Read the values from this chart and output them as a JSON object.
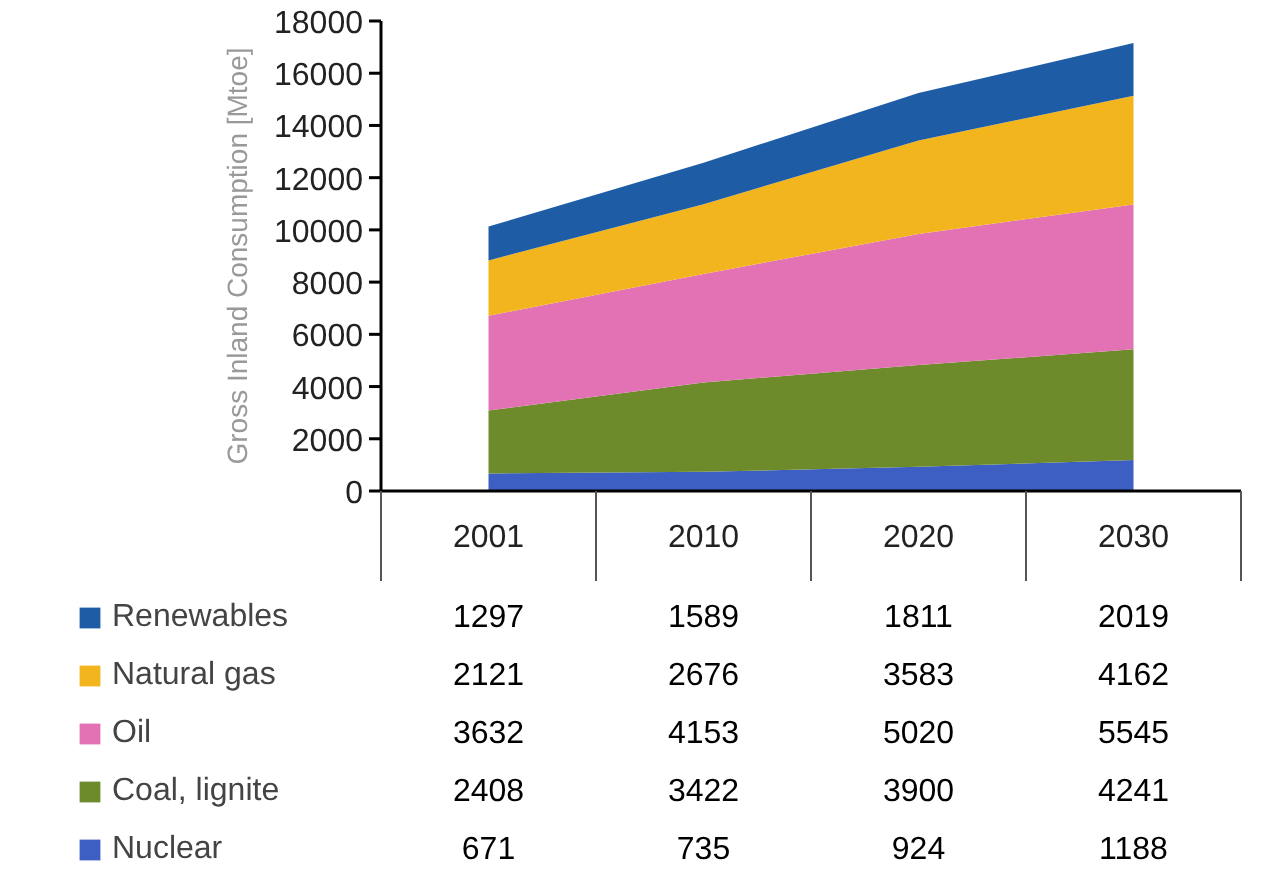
{
  "chart_data": {
    "type": "area",
    "stacked": true,
    "ylabel": "Gross Inland Consumption [Mtoe]",
    "categories": [
      "2001",
      "2010",
      "2020",
      "2030"
    ],
    "ylim": [
      0,
      18000
    ],
    "yticks": [
      0,
      2000,
      4000,
      6000,
      8000,
      10000,
      12000,
      14000,
      16000,
      18000
    ],
    "legend": "bottom",
    "data_labels": true,
    "series": [
      {
        "name": "Nuclear",
        "color": "#3d5fc4",
        "values": [
          671,
          735,
          924,
          1188
        ]
      },
      {
        "name": "Coal, lignite",
        "color": "#6e8b2c",
        "values": [
          2408,
          3422,
          3900,
          4241
        ]
      },
      {
        "name": "Oil",
        "color": "#e272b4",
        "values": [
          3632,
          4153,
          5020,
          5545
        ]
      },
      {
        "name": "Natural gas",
        "color": "#f2b51e",
        "values": [
          2121,
          2676,
          3583,
          4162
        ]
      },
      {
        "name": "Renewables",
        "color": "#1f5ca6",
        "values": [
          1297,
          1589,
          1811,
          2019
        ]
      }
    ]
  }
}
